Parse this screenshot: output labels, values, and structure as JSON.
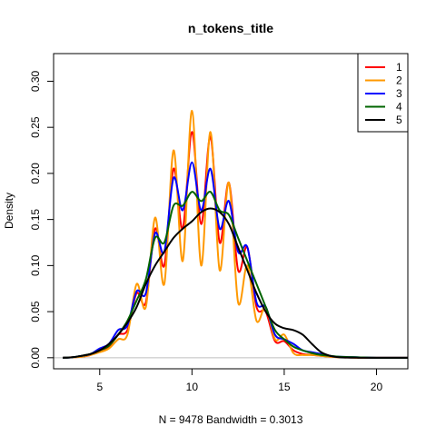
{
  "chart_data": {
    "type": "line",
    "title": "n_tokens_title",
    "xlabel": "N = 9478   Bandwidth = 0.3013",
    "ylabel": "Density",
    "xlim": [
      2.5,
      21.7
    ],
    "ylim": [
      -0.012,
      0.33
    ],
    "xticks": [
      5,
      10,
      15,
      20
    ],
    "xtick_labels": [
      "5",
      "10",
      "15",
      "20"
    ],
    "yticks": [
      0.0,
      0.05,
      0.1,
      0.15,
      0.2,
      0.25,
      0.3
    ],
    "ytick_labels": [
      "0.00",
      "0.05",
      "0.10",
      "0.15",
      "0.20",
      "0.25",
      "0.30"
    ],
    "grid": false,
    "legend_position": "top-right",
    "baseline": {
      "y": 0,
      "color": "#bfbfbf"
    },
    "series": [
      {
        "name": "1",
        "color": "#ff0000",
        "x": [
          3,
          3.5,
          4,
          4.5,
          5,
          5.5,
          6,
          6.5,
          7,
          7.5,
          8,
          8.5,
          9,
          9.5,
          10,
          10.5,
          11,
          11.5,
          12,
          12.5,
          13,
          13.5,
          14,
          14.5,
          15,
          15.5,
          16,
          16.5,
          17,
          17.5,
          18,
          19,
          20,
          21.7
        ],
        "values": [
          0.0,
          0.0005,
          0.001,
          0.003,
          0.008,
          0.012,
          0.025,
          0.03,
          0.07,
          0.06,
          0.14,
          0.1,
          0.205,
          0.14,
          0.245,
          0.145,
          0.24,
          0.125,
          0.19,
          0.095,
          0.12,
          0.055,
          0.05,
          0.018,
          0.018,
          0.008,
          0.004,
          0.003,
          0.002,
          0.001,
          0.0005,
          0.0,
          0.0,
          0.0
        ]
      },
      {
        "name": "2",
        "color": "#ff9900",
        "x": [
          3,
          3.5,
          4,
          4.5,
          5,
          5.5,
          6,
          6.5,
          7,
          7.5,
          8,
          8.5,
          9,
          9.5,
          10,
          10.5,
          11,
          11.5,
          12,
          12.5,
          13,
          13.5,
          14,
          14.5,
          15,
          15.5,
          16,
          16.5,
          17,
          17.5,
          18,
          19,
          20,
          21.7
        ],
        "values": [
          0.0,
          0.0005,
          0.001,
          0.003,
          0.006,
          0.01,
          0.02,
          0.025,
          0.08,
          0.055,
          0.152,
          0.08,
          0.225,
          0.105,
          0.268,
          0.1,
          0.245,
          0.095,
          0.19,
          0.06,
          0.1,
          0.04,
          0.055,
          0.02,
          0.025,
          0.005,
          0.003,
          0.003,
          0.002,
          0.001,
          0.0005,
          0.0,
          0.0,
          0.0
        ]
      },
      {
        "name": "3",
        "color": "#0000ff",
        "x": [
          3,
          3.5,
          4,
          4.5,
          5,
          5.5,
          6,
          6.5,
          7,
          7.5,
          8,
          8.5,
          9,
          9.5,
          10,
          10.5,
          11,
          11.5,
          12,
          12.5,
          13,
          13.5,
          14,
          14.5,
          15,
          15.5,
          16,
          16.5,
          17,
          17.5,
          18,
          19,
          20,
          21.7
        ],
        "values": [
          0.0,
          0.0005,
          0.002,
          0.004,
          0.01,
          0.015,
          0.03,
          0.035,
          0.072,
          0.07,
          0.135,
          0.115,
          0.195,
          0.16,
          0.212,
          0.16,
          0.205,
          0.14,
          0.17,
          0.115,
          0.12,
          0.06,
          0.055,
          0.025,
          0.02,
          0.015,
          0.008,
          0.006,
          0.004,
          0.002,
          0.001,
          0.0005,
          0.0,
          0.0
        ]
      },
      {
        "name": "4",
        "color": "#006400",
        "x": [
          3,
          3.5,
          4,
          4.5,
          5,
          5.5,
          6,
          6.5,
          7,
          7.5,
          8,
          8.5,
          9,
          9.5,
          10,
          10.5,
          11,
          11.5,
          12,
          12.5,
          13,
          13.5,
          14,
          14.5,
          15,
          15.5,
          16,
          16.5,
          17,
          17.5,
          18,
          19,
          20,
          21.7
        ],
        "values": [
          0.0,
          0.0005,
          0.002,
          0.004,
          0.008,
          0.013,
          0.025,
          0.04,
          0.062,
          0.085,
          0.13,
          0.125,
          0.165,
          0.165,
          0.18,
          0.17,
          0.18,
          0.16,
          0.155,
          0.13,
          0.105,
          0.08,
          0.055,
          0.03,
          0.02,
          0.012,
          0.008,
          0.005,
          0.003,
          0.002,
          0.001,
          0.0005,
          0.0,
          0.0
        ]
      },
      {
        "name": "5",
        "color": "#000000",
        "x": [
          3,
          3.5,
          4,
          4.5,
          5,
          5.5,
          6,
          6.5,
          7,
          7.5,
          8,
          8.5,
          9,
          9.5,
          10,
          10.5,
          11,
          11.5,
          12,
          12.5,
          13,
          13.5,
          14,
          14.5,
          15,
          15.5,
          16,
          16.5,
          17,
          17.5,
          18,
          19,
          20,
          21.7
        ],
        "values": [
          0.0,
          0.0005,
          0.002,
          0.004,
          0.008,
          0.015,
          0.025,
          0.038,
          0.055,
          0.08,
          0.1,
          0.115,
          0.13,
          0.14,
          0.148,
          0.158,
          0.162,
          0.158,
          0.145,
          0.12,
          0.095,
          0.07,
          0.05,
          0.037,
          0.032,
          0.03,
          0.025,
          0.015,
          0.006,
          0.002,
          0.0005,
          0.0,
          0.0,
          0.0
        ]
      }
    ]
  }
}
